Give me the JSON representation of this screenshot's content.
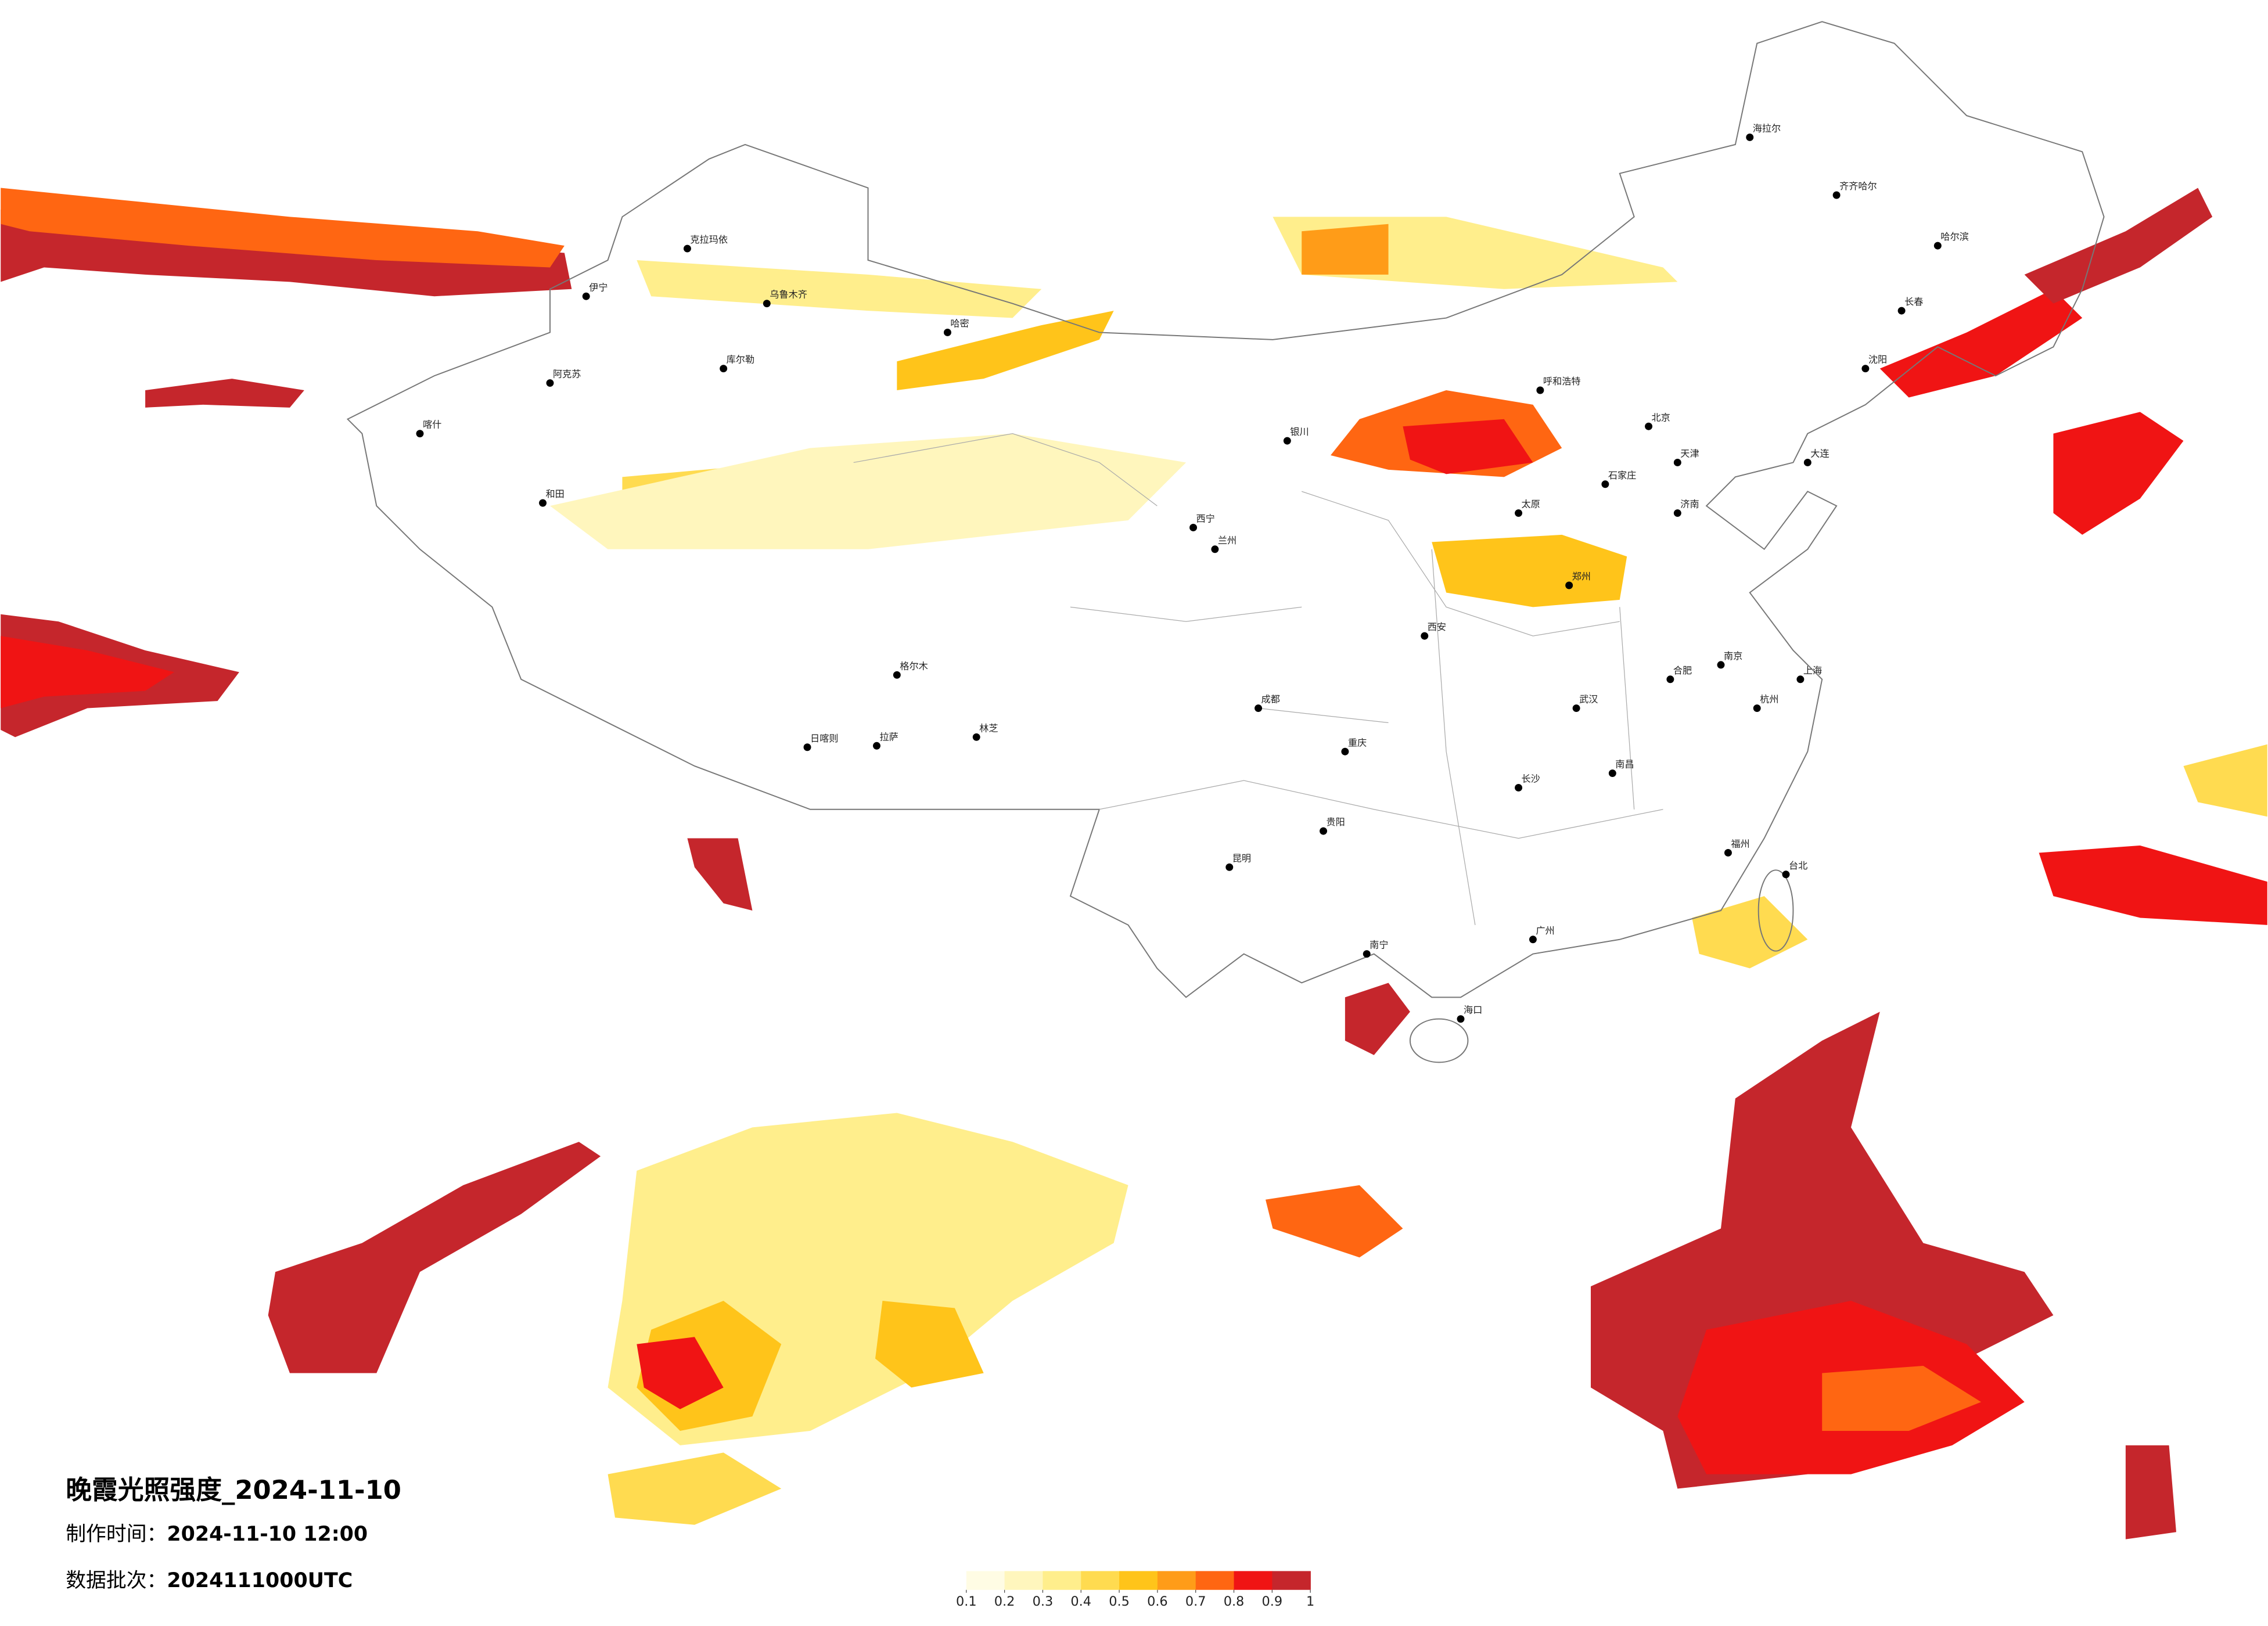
{
  "title": "晚霞光照强度_2024-11-10",
  "production_time_label": "制作时间：",
  "production_time": "2024-11-10 12:00",
  "batch_label": "数据批次：",
  "batch": "2024111000UTC",
  "colorbar": {
    "colors": [
      "#fffce4",
      "#fff6bd",
      "#ffee8c",
      "#ffdb50",
      "#ffc41a",
      "#ff9c18",
      "#ff6612",
      "#f01414",
      "#c5262c"
    ],
    "ticks": [
      0.1,
      0.2,
      0.3,
      0.4,
      0.5,
      0.6,
      0.7,
      0.8,
      0.9,
      1
    ]
  },
  "cities": [
    "乌鲁木齐",
    "克拉玛依",
    "伊宁",
    "哈密",
    "阿克苏",
    "喀什",
    "和田",
    "库尔勒",
    "拉萨",
    "日喀则",
    "林芝",
    "格尔木",
    "西宁",
    "兰州",
    "银川",
    "呼和浩特",
    "北京",
    "天津",
    "石家庄",
    "太原",
    "西安",
    "郑州",
    "济南",
    "武汉",
    "南京",
    "上海",
    "杭州",
    "合肥",
    "长沙",
    "南昌",
    "福州",
    "广州",
    "南宁",
    "海口",
    "贵阳",
    "昆明",
    "成都",
    "重庆",
    "哈尔滨",
    "长春",
    "沈阳",
    "大连",
    "台北",
    "海拉尔",
    "齐齐哈尔"
  ]
}
